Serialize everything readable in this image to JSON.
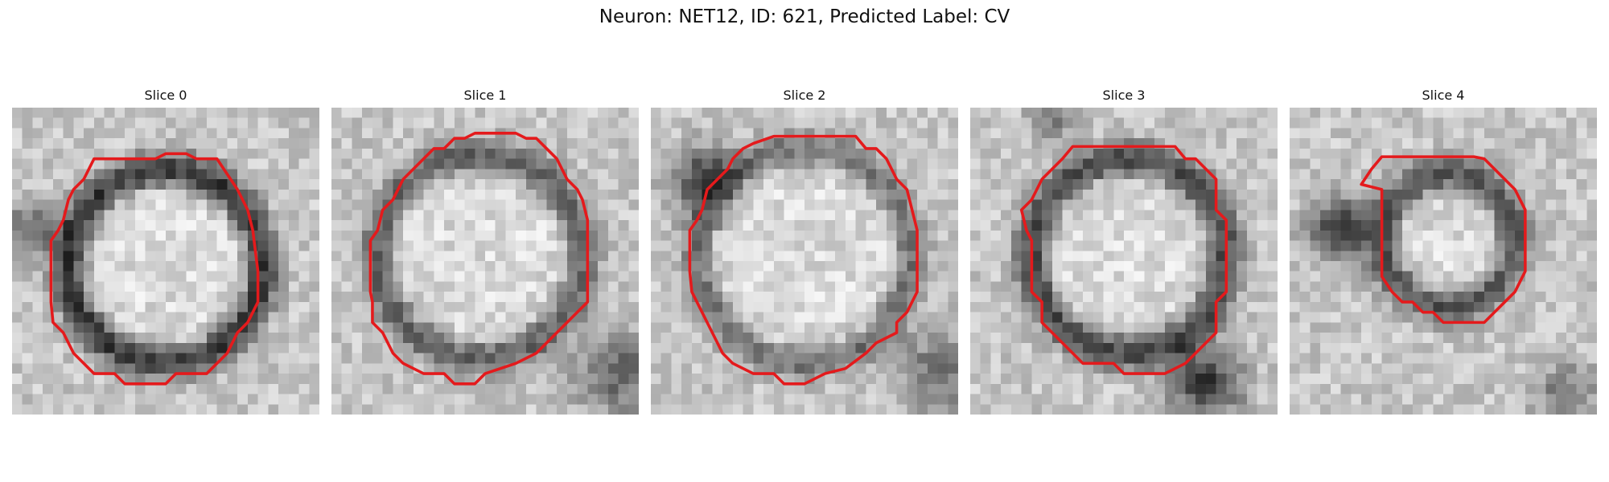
{
  "figure": {
    "title": "Neuron: NET12, ID: 621, Predicted Label: CV"
  },
  "style": {
    "contour_color": "#e41a1c"
  },
  "slices": [
    {
      "title": "Slice 0"
    },
    {
      "title": "Slice 1"
    },
    {
      "title": "Slice 2"
    },
    {
      "title": "Slice 3"
    },
    {
      "title": "Slice 4"
    }
  ]
}
